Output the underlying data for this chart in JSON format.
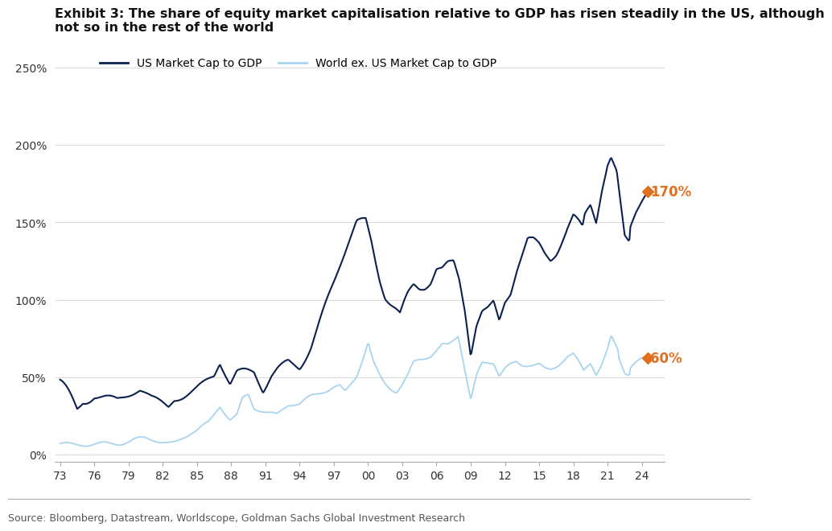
{
  "title_line1": "Exhibit 3: The share of equity market capitalisation relative to GDP has risen steadily in the US, although",
  "title_line2": "not so in the rest of the world",
  "source": "Source: Bloomberg, Datastream, Worldscope, Goldman Sachs Global Investment Research",
  "legend_us": "US Market Cap to GDP",
  "legend_world": "World ex. US Market Cap to GDP",
  "us_final_label": "170%",
  "world_final_label": "60%",
  "us_color": "#0d2150",
  "world_color": "#a8d4f0",
  "label_color": "#e07020",
  "background_color": "#ffffff",
  "title_fontsize": 11.5,
  "axis_fontsize": 10,
  "source_fontsize": 9,
  "ylim": [
    -0.05,
    2.65
  ],
  "yticks": [
    0.0,
    0.5,
    1.0,
    1.5,
    2.0,
    2.5
  ],
  "ytick_labels": [
    "0%",
    "50%",
    "100%",
    "150%",
    "200%",
    "250%"
  ],
  "xtick_labels": [
    "73",
    "76",
    "79",
    "82",
    "85",
    "88",
    "91",
    "94",
    "97",
    "00",
    "03",
    "06",
    "09",
    "12",
    "15",
    "18",
    "21",
    "24"
  ]
}
